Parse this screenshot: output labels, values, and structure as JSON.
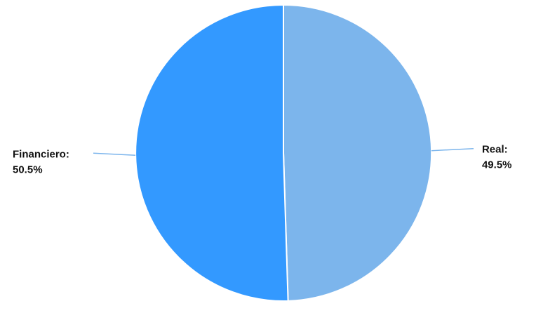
{
  "chart_data": {
    "type": "pie",
    "title": "",
    "slices": [
      {
        "label": "Real",
        "value": 49.5,
        "value_label": "49.5%",
        "color": "#7cb5ec"
      },
      {
        "label": "Financiero",
        "value": 50.5,
        "value_label": "50.5%",
        "color": "#3399ff"
      }
    ],
    "start_angle": "12 o'clock, clockwise",
    "legend": "none",
    "data_labels": "outside with connector lines",
    "slice_border_color": "#ffffff",
    "connector_color": "#7cb5ec",
    "label_color": "#111111"
  }
}
